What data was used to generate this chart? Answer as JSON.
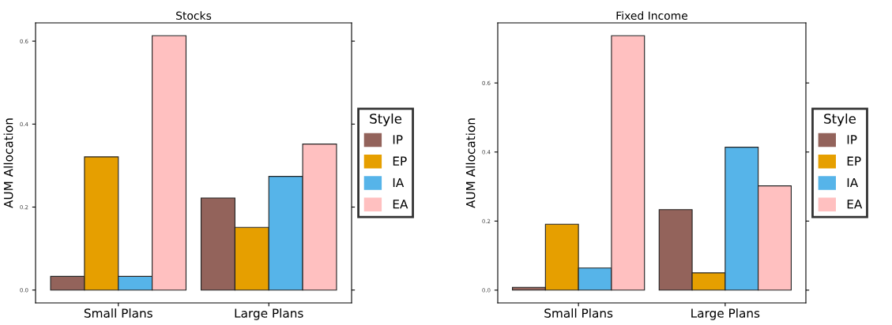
{
  "chart_data": [
    {
      "type": "bar",
      "title": "Stocks",
      "ylabel": "AUM Allocation",
      "legend_title": "Style",
      "legend": "right",
      "categories": [
        "Small Plans",
        "Large Plans"
      ],
      "ylim": [
        -0.031,
        0.644
      ],
      "yticks": [
        {
          "value": 0,
          "label": "0.0"
        },
        {
          "value": 0.2,
          "label": "0.2"
        },
        {
          "value": 0.4,
          "label": "0.4"
        },
        {
          "value": 0.6,
          "label": "0.6"
        }
      ],
      "series": [
        {
          "name": "IP",
          "color": "#93635b",
          "values": [
            0.033,
            0.222
          ]
        },
        {
          "name": "EP",
          "color": "#e69f00",
          "values": [
            0.321,
            0.151
          ]
        },
        {
          "name": "IA",
          "color": "#56b4e9",
          "values": [
            0.033,
            0.274
          ]
        },
        {
          "name": "EA",
          "color": "#ffc0c0",
          "values": [
            0.613,
            0.352
          ]
        }
      ]
    },
    {
      "type": "bar",
      "title": "Fixed Income",
      "ylabel": "AUM Allocation",
      "legend_title": "Style",
      "legend": "right",
      "categories": [
        "Small Plans",
        "Large Plans"
      ],
      "ylim": [
        -0.037,
        0.774
      ],
      "yticks": [
        {
          "value": 0,
          "label": "0.0"
        },
        {
          "value": 0.2,
          "label": "0.2"
        },
        {
          "value": 0.4,
          "label": "0.4"
        },
        {
          "value": 0.6,
          "label": "0.6"
        }
      ],
      "series": [
        {
          "name": "IP",
          "color": "#93635b",
          "values": [
            0.008,
            0.233
          ]
        },
        {
          "name": "EP",
          "color": "#e69f00",
          "values": [
            0.191,
            0.05
          ]
        },
        {
          "name": "IA",
          "color": "#56b4e9",
          "values": [
            0.064,
            0.414
          ]
        },
        {
          "name": "EA",
          "color": "#ffc0c0",
          "values": [
            0.737,
            0.302
          ]
        }
      ]
    }
  ]
}
